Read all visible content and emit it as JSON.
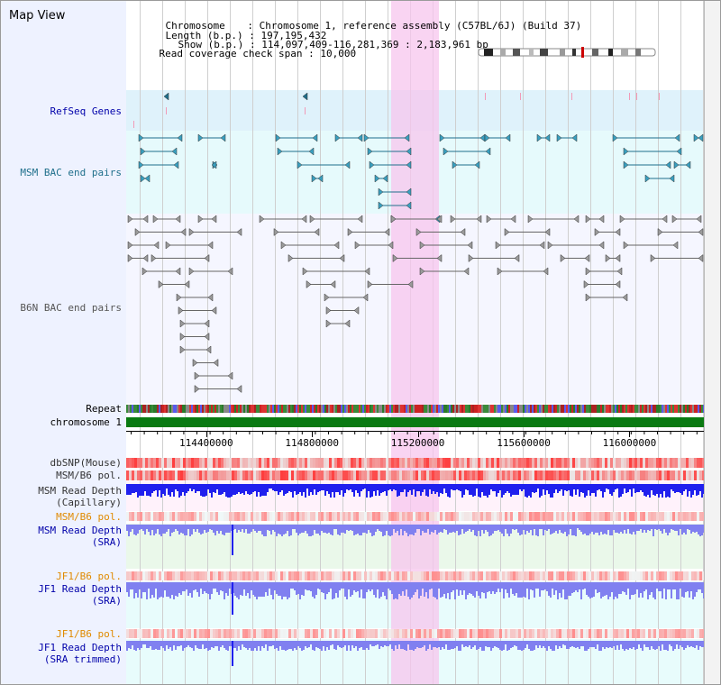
{
  "page": {
    "title": "Map View"
  },
  "summary": {
    "chromosome_label": "Chromosome",
    "chromosome_value": "Chromosome 1, reference assembly (C57BL/6J) (Build 37)",
    "length_label": "Length (b.p.)",
    "length_value": "197,195,432",
    "show_label": "Show (b.p.)",
    "show_value": "114,097,409-116,281,369 : 2,183,961 bp",
    "coverage_label": "Read coverage check span",
    "coverage_value": "10,000",
    "sep": " : "
  },
  "tracks": {
    "refseq": {
      "label": "RefSeq Genes",
      "color": "#0000aa"
    },
    "msm_bac": {
      "label": "MSM BAC end pairs",
      "color": "#1f6f8b"
    },
    "b6n_bac": {
      "label": "B6N BAC end pairs",
      "color": "#555555"
    },
    "repeat": {
      "label": "Repeat",
      "color": "#000000"
    },
    "chromosome": {
      "label": "chromosome 1",
      "color": "#000000"
    },
    "dbsnp": {
      "label": "dbSNP(Mouse)",
      "color": "#333333"
    },
    "msm_b6_pol": {
      "label": "MSM/B6 pol.",
      "color": "#333333"
    },
    "msm_read_cap": {
      "label": "MSM Read Depth\n(Capillary)",
      "color": "#333333"
    },
    "msm_b6_pol_2": {
      "label": "MSM/B6 pol.",
      "color": "#e08a00"
    },
    "msm_read_sra": {
      "label": "MSM Read Depth\n(SRA)",
      "color": "#0000aa"
    },
    "jf1_b6_pol": {
      "label": "JF1/B6 pol.",
      "color": "#e08a00"
    },
    "jf1_read_sra": {
      "label": "JF1 Read Depth\n(SRA)",
      "color": "#0000aa"
    },
    "jf1_b6_pol_2": {
      "label": "JF1/B6 pol.",
      "color": "#e08a00"
    },
    "jf1_read_trim": {
      "label": "JF1 Read Depth\n(SRA trimmed)",
      "color": "#0000aa"
    }
  },
  "ruler": {
    "ticks": [
      {
        "label": "114400000",
        "pos": 114400000
      },
      {
        "label": "114800000",
        "pos": 114800000
      },
      {
        "label": "115200000",
        "pos": 115200000
      },
      {
        "label": "115600000",
        "pos": 115600000
      },
      {
        "label": "116000000",
        "pos": 116000000
      }
    ],
    "start": 114097409,
    "end": 116281369
  },
  "selection": {
    "start": 115100000,
    "end": 115280000,
    "color": "#f7c6ee"
  },
  "colors": {
    "refseq_bg": "#dff2fb",
    "msm_bg": "#e6fafc",
    "b6n_bg": "#f5f6ff",
    "chromosome_bar": "#0a7a12",
    "depth_blue": "#2020ee",
    "depth_light": "#8080f0",
    "msm_pair": "#1f6f8b",
    "b6n_pair": "#666666",
    "pink_mark": "#f29ab7"
  }
}
